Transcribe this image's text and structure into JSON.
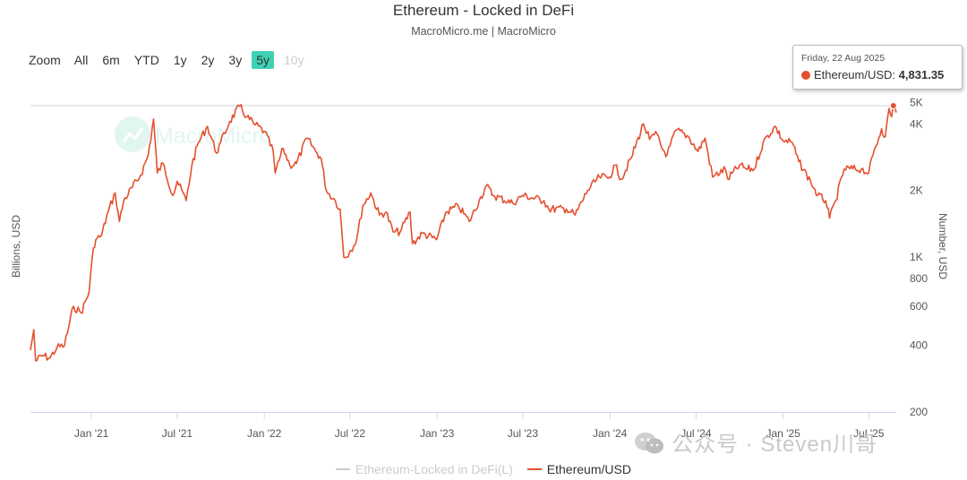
{
  "chart_data": {
    "type": "line",
    "title": "Ethereum - Locked in DeFi",
    "subtitle": "MacroMicro.me | MacroMicro",
    "watermark_logo": "MacroMicro",
    "y_left_label": "Billions, USD",
    "y_right_label": "Number, USD",
    "y_right_scale": "log",
    "y_right_range": [
      200,
      5000
    ],
    "y_right_ticks": [
      {
        "value": 200,
        "label": "200"
      },
      {
        "value": 400,
        "label": "400"
      },
      {
        "value": 600,
        "label": "600"
      },
      {
        "value": 800,
        "label": "800"
      },
      {
        "value": 1000,
        "label": "1K"
      },
      {
        "value": 2000,
        "label": "2K"
      },
      {
        "value": 4000,
        "label": "4K"
      },
      {
        "value": 5000,
        "label": "5K"
      }
    ],
    "x_range": [
      "2020-08-25",
      "2025-08-28"
    ],
    "x_ticks": [
      {
        "date": "2021-01-01",
        "label": "Jan '21"
      },
      {
        "date": "2021-07-01",
        "label": "Jul '21"
      },
      {
        "date": "2022-01-01",
        "label": "Jan '22"
      },
      {
        "date": "2022-07-01",
        "label": "Jul '22"
      },
      {
        "date": "2023-01-01",
        "label": "Jan '23"
      },
      {
        "date": "2023-07-01",
        "label": "Jul '23"
      },
      {
        "date": "2024-01-01",
        "label": "Jan '24"
      },
      {
        "date": "2024-07-01",
        "label": "Jul '24"
      },
      {
        "date": "2025-01-01",
        "label": "Jan '25"
      },
      {
        "date": "2025-07-01",
        "label": "Jul '25"
      }
    ],
    "series": [
      {
        "name": "Ethereum-Locked in DeFi(L)",
        "color": "#cccccc",
        "visible": false,
        "points": []
      },
      {
        "name": "Ethereum/USD",
        "color": "#e4502f",
        "visible": true,
        "points": [
          [
            "2020-08-25",
            380
          ],
          [
            "2020-09-01",
            470
          ],
          [
            "2020-09-05",
            340
          ],
          [
            "2020-09-20",
            360
          ],
          [
            "2020-10-05",
            350
          ],
          [
            "2020-10-20",
            390
          ],
          [
            "2020-11-05",
            400
          ],
          [
            "2020-11-24",
            600
          ],
          [
            "2020-12-10",
            560
          ],
          [
            "2020-12-27",
            700
          ],
          [
            "2021-01-05",
            1100
          ],
          [
            "2021-01-10",
            1200
          ],
          [
            "2021-01-22",
            1250
          ],
          [
            "2021-02-05",
            1600
          ],
          [
            "2021-02-20",
            1950
          ],
          [
            "2021-03-01",
            1450
          ],
          [
            "2021-03-10",
            1800
          ],
          [
            "2021-04-15",
            2350
          ],
          [
            "2021-05-01",
            2900
          ],
          [
            "2021-05-12",
            4200
          ],
          [
            "2021-05-20",
            2400
          ],
          [
            "2021-06-01",
            2650
          ],
          [
            "2021-06-22",
            1900
          ],
          [
            "2021-07-01",
            2200
          ],
          [
            "2021-07-20",
            1800
          ],
          [
            "2021-08-01",
            2600
          ],
          [
            "2021-08-15",
            3300
          ],
          [
            "2021-09-03",
            3900
          ],
          [
            "2021-09-22",
            2950
          ],
          [
            "2021-10-01",
            3300
          ],
          [
            "2021-10-20",
            4100
          ],
          [
            "2021-11-10",
            4800
          ],
          [
            "2021-11-25",
            4300
          ],
          [
            "2021-12-10",
            4000
          ],
          [
            "2022-01-01",
            3700
          ],
          [
            "2022-01-20",
            3000
          ],
          [
            "2022-01-24",
            2400
          ],
          [
            "2022-02-10",
            3100
          ],
          [
            "2022-02-24",
            2600
          ],
          [
            "2022-03-10",
            2650
          ],
          [
            "2022-04-01",
            3450
          ],
          [
            "2022-04-20",
            3000
          ],
          [
            "2022-05-01",
            2800
          ],
          [
            "2022-05-12",
            2000
          ],
          [
            "2022-05-31",
            1800
          ],
          [
            "2022-06-10",
            1650
          ],
          [
            "2022-06-18",
            1000
          ],
          [
            "2022-06-30",
            1050
          ],
          [
            "2022-07-15",
            1200
          ],
          [
            "2022-07-28",
            1700
          ],
          [
            "2022-08-14",
            1950
          ],
          [
            "2022-09-01",
            1550
          ],
          [
            "2022-09-15",
            1600
          ],
          [
            "2022-09-30",
            1300
          ],
          [
            "2022-10-15",
            1300
          ],
          [
            "2022-11-05",
            1600
          ],
          [
            "2022-11-10",
            1150
          ],
          [
            "2022-12-01",
            1280
          ],
          [
            "2022-12-31",
            1200
          ],
          [
            "2023-01-20",
            1600
          ],
          [
            "2023-02-15",
            1700
          ],
          [
            "2023-03-10",
            1450
          ],
          [
            "2023-03-31",
            1800
          ],
          [
            "2023-04-15",
            2100
          ],
          [
            "2023-04-30",
            1900
          ],
          [
            "2023-06-10",
            1750
          ],
          [
            "2023-06-30",
            1900
          ],
          [
            "2023-08-15",
            1800
          ],
          [
            "2023-08-25",
            1650
          ],
          [
            "2023-10-01",
            1650
          ],
          [
            "2023-10-20",
            1550
          ],
          [
            "2023-11-15",
            2000
          ],
          [
            "2023-12-10",
            2300
          ],
          [
            "2023-12-31",
            2300
          ],
          [
            "2024-01-12",
            2600
          ],
          [
            "2024-01-25",
            2250
          ],
          [
            "2024-02-15",
            2800
          ],
          [
            "2024-03-12",
            4000
          ],
          [
            "2024-03-25",
            3400
          ],
          [
            "2024-04-10",
            3600
          ],
          [
            "2024-04-20",
            3100
          ],
          [
            "2024-05-01",
            2900
          ],
          [
            "2024-05-20",
            3750
          ],
          [
            "2024-06-15",
            3500
          ],
          [
            "2024-07-05",
            3000
          ],
          [
            "2024-07-20",
            3450
          ],
          [
            "2024-08-05",
            2300
          ],
          [
            "2024-09-01",
            2500
          ],
          [
            "2024-09-06",
            2250
          ],
          [
            "2024-10-01",
            2600
          ],
          [
            "2024-10-15",
            2500
          ],
          [
            "2024-11-01",
            2500
          ],
          [
            "2024-11-20",
            3300
          ],
          [
            "2024-12-15",
            3900
          ],
          [
            "2025-01-01",
            3350
          ],
          [
            "2025-01-20",
            3300
          ],
          [
            "2025-02-03",
            2700
          ],
          [
            "2025-02-28",
            2200
          ],
          [
            "2025-03-15",
            1900
          ],
          [
            "2025-04-01",
            1800
          ],
          [
            "2025-04-09",
            1500
          ],
          [
            "2025-04-22",
            1800
          ],
          [
            "2025-05-10",
            2500
          ],
          [
            "2025-06-15",
            2500
          ],
          [
            "2025-07-01",
            2400
          ],
          [
            "2025-07-10",
            2900
          ],
          [
            "2025-07-28",
            3800
          ],
          [
            "2025-08-05",
            3500
          ],
          [
            "2025-08-13",
            4700
          ],
          [
            "2025-08-18",
            4300
          ],
          [
            "2025-08-22",
            4831.35
          ],
          [
            "2025-08-28",
            4500
          ]
        ]
      }
    ]
  },
  "range_selector": {
    "label": "Zoom",
    "buttons": [
      {
        "label": "All",
        "state": "normal"
      },
      {
        "label": "6m",
        "state": "normal"
      },
      {
        "label": "YTD",
        "state": "normal"
      },
      {
        "label": "1y",
        "state": "normal"
      },
      {
        "label": "2y",
        "state": "normal"
      },
      {
        "label": "3y",
        "state": "normal"
      },
      {
        "label": "5y",
        "state": "active"
      },
      {
        "label": "10y",
        "state": "disabled"
      }
    ]
  },
  "tooltip": {
    "date": "Friday, 22 Aug 2025",
    "series": "Ethereum/USD:",
    "value": "4,831.35"
  },
  "legend": [
    {
      "label": "Ethereum-Locked in DeFi(L)",
      "color": "#cccccc",
      "active": false
    },
    {
      "label": "Ethereum/USD",
      "color": "#e4502f",
      "active": true
    }
  ],
  "watermark_text": "公众号 · Steven川哥"
}
